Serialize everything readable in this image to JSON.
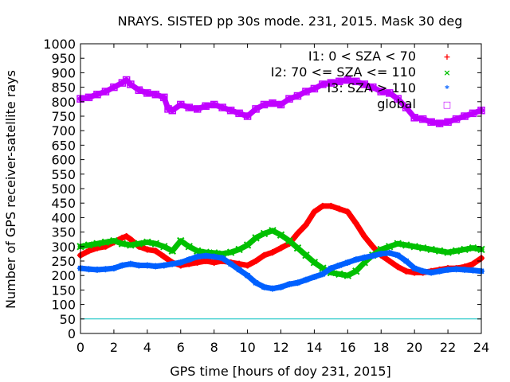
{
  "chart_data": {
    "type": "scatter",
    "title": "NRAYS. SISTED pp 30s mode. 231, 2015. Mask 30 deg",
    "xlabel": "GPS time [hours of doy 231, 2015]",
    "ylabel": "Number of GPS receiver-satellite rays",
    "xlim": [
      0,
      24
    ],
    "ylim": [
      0,
      1000
    ],
    "xticks": [
      "0",
      "2",
      "4",
      "6",
      "8",
      "10",
      "12",
      "14",
      "16",
      "18",
      "20",
      "22",
      "24"
    ],
    "yticks": [
      "0",
      "50",
      "100",
      "150",
      "200",
      "250",
      "300",
      "350",
      "400",
      "450",
      "500",
      "550",
      "600",
      "650",
      "700",
      "750",
      "800",
      "850",
      "900",
      "950",
      "1000"
    ],
    "reference_line": {
      "y": 50,
      "color": "#00c0c0"
    },
    "legend_position": "top-right",
    "series": [
      {
        "name": "I1: 0 < SZA < 70",
        "color": "#ff0000",
        "marker": "+",
        "x": [
          0,
          0.5,
          1,
          1.5,
          2,
          2.5,
          2.75,
          3,
          3.5,
          4,
          4.5,
          5,
          5.5,
          6,
          6.5,
          7,
          7.5,
          8,
          8.5,
          9,
          9.5,
          10,
          10.5,
          11,
          11.5,
          12,
          12.5,
          13,
          13.5,
          14,
          14.5,
          15,
          15.5,
          16,
          16.5,
          17,
          17.5,
          18,
          18.5,
          19,
          19.5,
          20,
          20.5,
          21,
          21.5,
          22,
          22.5,
          23,
          23.5,
          24
        ],
        "y": [
          270,
          285,
          295,
          300,
          315,
          330,
          335,
          325,
          300,
          290,
          285,
          265,
          245,
          235,
          240,
          245,
          250,
          245,
          250,
          245,
          240,
          235,
          250,
          270,
          280,
          295,
          310,
          345,
          375,
          420,
          440,
          440,
          430,
          420,
          380,
          335,
          300,
          270,
          250,
          230,
          215,
          210,
          210,
          215,
          220,
          225,
          225,
          230,
          240,
          260
        ]
      },
      {
        "name": "I2: 70 <= SZA <= 110",
        "color": "#00c000",
        "marker": "×",
        "x": [
          0,
          0.5,
          1,
          1.5,
          2,
          2.5,
          3,
          3.5,
          4,
          4.5,
          5,
          5.5,
          6,
          6.5,
          7,
          7.5,
          8,
          8.5,
          9,
          9.5,
          10,
          10.5,
          11,
          11.5,
          12,
          12.5,
          13,
          13.5,
          14,
          14.5,
          15,
          15.5,
          16,
          16.5,
          17,
          17.5,
          18,
          18.5,
          19,
          19.5,
          20,
          20.5,
          21,
          21.5,
          22,
          22.5,
          23,
          23.5,
          24
        ],
        "y": [
          300,
          305,
          310,
          315,
          320,
          310,
          305,
          310,
          315,
          310,
          300,
          285,
          320,
          300,
          285,
          280,
          278,
          275,
          280,
          290,
          305,
          330,
          345,
          355,
          340,
          320,
          295,
          270,
          245,
          225,
          210,
          205,
          200,
          215,
          245,
          270,
          290,
          300,
          310,
          305,
          300,
          295,
          290,
          285,
          280,
          285,
          290,
          295,
          290
        ]
      },
      {
        "name": "I3: SZA > 110",
        "color": "#0060ff",
        "marker": "*",
        "x": [
          0,
          0.5,
          1,
          1.5,
          2,
          2.5,
          3,
          3.5,
          4,
          4.5,
          5,
          5.5,
          6,
          6.5,
          7,
          7.5,
          8,
          8.5,
          9,
          9.5,
          10,
          10.5,
          11,
          11.5,
          12,
          12.5,
          13,
          13.5,
          14,
          14.5,
          15,
          15.5,
          16,
          16.5,
          17,
          17.5,
          18,
          18.5,
          19,
          19.5,
          20,
          20.5,
          21,
          21.5,
          22,
          22.5,
          23,
          23.5,
          24
        ],
        "y": [
          225,
          222,
          220,
          222,
          225,
          235,
          240,
          235,
          235,
          232,
          235,
          240,
          245,
          255,
          265,
          268,
          265,
          260,
          240,
          220,
          200,
          175,
          160,
          155,
          160,
          170,
          175,
          185,
          195,
          205,
          225,
          235,
          245,
          255,
          262,
          268,
          275,
          278,
          270,
          250,
          225,
          215,
          210,
          215,
          220,
          222,
          220,
          218,
          215
        ]
      },
      {
        "name": "global",
        "color": "#c000ff",
        "marker": "□",
        "x": [
          0,
          0.5,
          1,
          1.5,
          2,
          2.5,
          2.75,
          3,
          3.5,
          4,
          4.5,
          5,
          5.25,
          5.5,
          6,
          6.5,
          7,
          7.5,
          8,
          8.5,
          9,
          9.5,
          10,
          10.5,
          11,
          11.5,
          12,
          12.5,
          13,
          13.5,
          14,
          14.5,
          15,
          15.5,
          16,
          16.5,
          17,
          17.5,
          18,
          18.5,
          19,
          19.5,
          20,
          20.5,
          21,
          21.5,
          22,
          22.5,
          23,
          23.5,
          24
        ],
        "y": [
          810,
          815,
          825,
          835,
          850,
          865,
          875,
          860,
          840,
          830,
          825,
          815,
          775,
          770,
          790,
          780,
          775,
          785,
          790,
          780,
          770,
          760,
          750,
          775,
          790,
          795,
          790,
          810,
          820,
          835,
          845,
          860,
          865,
          870,
          875,
          870,
          860,
          850,
          835,
          830,
          810,
          780,
          745,
          740,
          730,
          725,
          730,
          740,
          750,
          760,
          770
        ]
      }
    ]
  }
}
